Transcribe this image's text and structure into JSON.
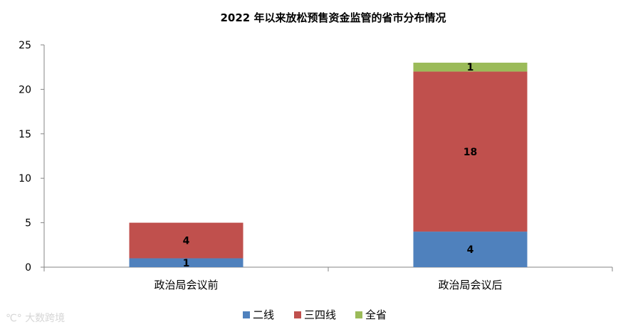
{
  "chart_data": {
    "type": "bar",
    "stacked": true,
    "title": "2022 年以来放松预售资金监管的省市分布情况",
    "xlabel": "",
    "ylabel": "",
    "ylim": [
      0,
      25
    ],
    "yticks": [
      0,
      5,
      10,
      15,
      20,
      25
    ],
    "grid": false,
    "legend_position": "bottom",
    "categories": [
      "政治局会议前",
      "政治局会议后"
    ],
    "series": [
      {
        "name": "二线",
        "values": [
          1,
          4
        ],
        "color": "#4F81BD"
      },
      {
        "name": "三四线",
        "values": [
          4,
          18
        ],
        "color": "#C0504D"
      },
      {
        "name": "全省",
        "values": [
          0,
          1
        ],
        "color": "#9BBB59"
      }
    ]
  },
  "watermark": "大数跨境"
}
